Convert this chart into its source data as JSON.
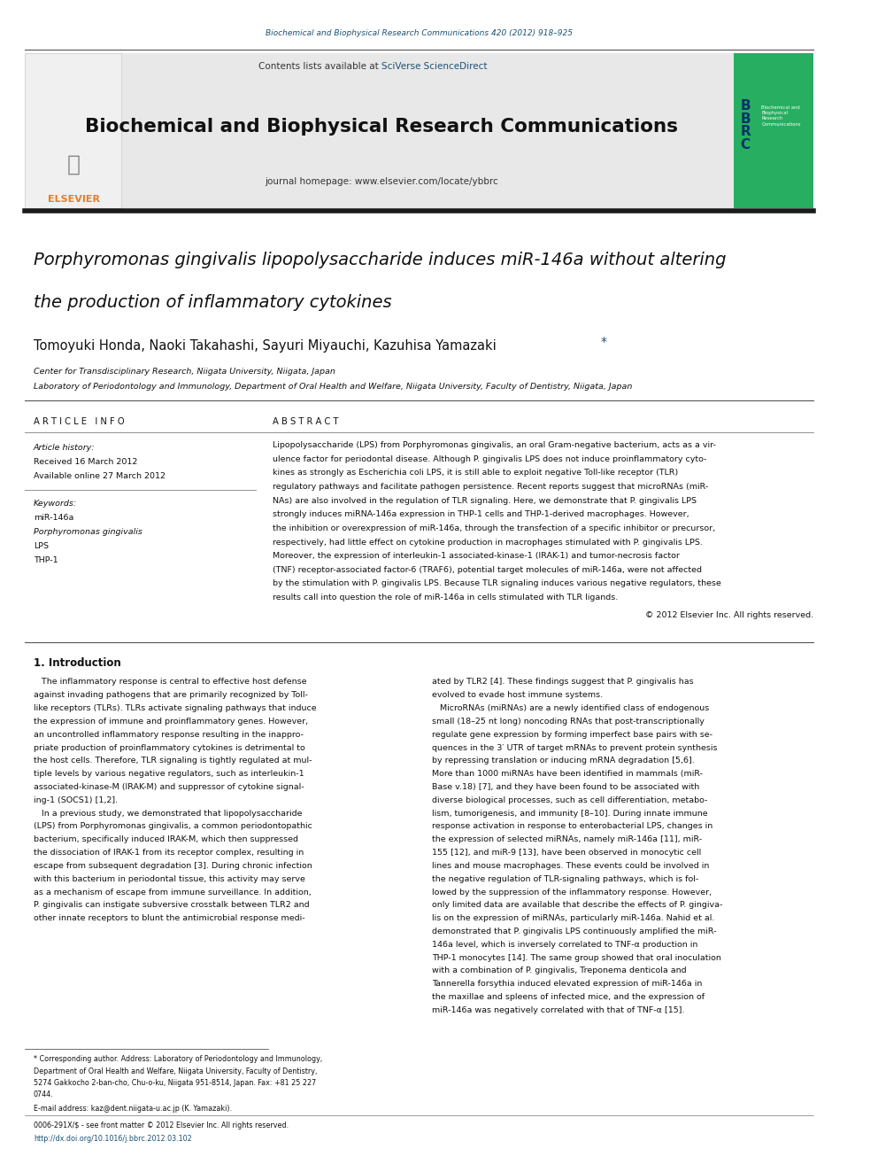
{
  "page_width": 9.92,
  "page_height": 13.23,
  "bg_color": "#ffffff",
  "top_journal_ref": "Biochemical and Biophysical Research Communications 420 (2012) 918–925",
  "top_ref_color": "#1a5276",
  "header_bg": "#e8e8e8",
  "header_text": "Contents lists available at ",
  "sciverse_text": "SciVerse ScienceDirect",
  "sciverse_color": "#1a5276",
  "journal_name": "Biochemical and Biophysical Research Communications",
  "journal_homepage": "journal homepage: www.elsevier.com/locate/ybbrc",
  "thick_line_color": "#1a1a1a",
  "article_title_line1": "Porphyromonas gingivalis lipopolysaccharide induces miR-146a without altering",
  "article_title_line2": "the production of inflammatory cytokines",
  "authors": "Tomoyuki Honda, Naoki Takahashi, Sayuri Miyauchi, Kazuhisa Yamazaki",
  "affil1": "Center for Transdisciplinary Research, Niigata University, Niigata, Japan",
  "affil2": "Laboratory of Periodontology and Immunology, Department of Oral Health and Welfare, Niigata University, Faculty of Dentistry, Niigata, Japan",
  "article_info_header": "A R T I C L E   I N F O",
  "abstract_header": "A B S T R A C T",
  "article_history_label": "Article history:",
  "received": "Received 16 March 2012",
  "available": "Available online 27 March 2012",
  "keywords_label": "Keywords:",
  "keywords": [
    "miR-146a",
    "Porphyromonas gingivalis",
    "LPS",
    "THP-1"
  ],
  "abstract_lines": [
    "Lipopolysaccharide (LPS) from Porphyromonas gingivalis, an oral Gram-negative bacterium, acts as a vir-",
    "ulence factor for periodontal disease. Although P. gingivalis LPS does not induce proinflammatory cyto-",
    "kines as strongly as Escherichia coli LPS, it is still able to exploit negative Toll-like receptor (TLR)",
    "regulatory pathways and facilitate pathogen persistence. Recent reports suggest that microRNAs (miR-",
    "NAs) are also involved in the regulation of TLR signaling. Here, we demonstrate that P. gingivalis LPS",
    "strongly induces miRNA-146a expression in THP-1 cells and THP-1-derived macrophages. However,",
    "the inhibition or overexpression of miR-146a, through the transfection of a specific inhibitor or precursor,",
    "respectively, had little effect on cytokine production in macrophages stimulated with P. gingivalis LPS.",
    "Moreover, the expression of interleukin-1 associated-kinase-1 (IRAK-1) and tumor-necrosis factor",
    "(TNF) receptor-associated factor-6 (TRAF6), potential target molecules of miR-146a, were not affected",
    "by the stimulation with P. gingivalis LPS. Because TLR signaling induces various negative regulators, these",
    "results call into question the role of miR-146a in cells stimulated with TLR ligands."
  ],
  "copyright": "© 2012 Elsevier Inc. All rights reserved.",
  "intro_header": "1. Introduction",
  "intro_left_lines": [
    "   The inflammatory response is central to effective host defense",
    "against invading pathogens that are primarily recognized by Toll-",
    "like receptors (TLRs). TLRs activate signaling pathways that induce",
    "the expression of immune and proinflammatory genes. However,",
    "an uncontrolled inflammatory response resulting in the inappro-",
    "priate production of proinflammatory cytokines is detrimental to",
    "the host cells. Therefore, TLR signaling is tightly regulated at mul-",
    "tiple levels by various negative regulators, such as interleukin-1",
    "associated-kinase-M (IRAK-M) and suppressor of cytokine signal-",
    "ing-1 (SOCS1) [1,2].",
    "   In a previous study, we demonstrated that lipopolysaccharide",
    "(LPS) from Porphyromonas gingivalis, a common periodontopathic",
    "bacterium, specifically induced IRAK-M, which then suppressed",
    "the dissociation of IRAK-1 from its receptor complex, resulting in",
    "escape from subsequent degradation [3]. During chronic infection",
    "with this bacterium in periodontal tissue, this activity may serve",
    "as a mechanism of escape from immune surveillance. In addition,",
    "P. gingivalis can instigate subversive crosstalk between TLR2 and",
    "other innate receptors to blunt the antimicrobial response medi-"
  ],
  "intro_right_lines": [
    "ated by TLR2 [4]. These findings suggest that P. gingivalis has",
    "evolved to evade host immune systems.",
    "   MicroRNAs (miRNAs) are a newly identified class of endogenous",
    "small (18–25 nt long) noncoding RNAs that post-transcriptionally",
    "regulate gene expression by forming imperfect base pairs with se-",
    "quences in the 3′ UTR of target mRNAs to prevent protein synthesis",
    "by repressing translation or inducing mRNA degradation [5,6].",
    "More than 1000 miRNAs have been identified in mammals (miR-",
    "Base v.18) [7], and they have been found to be associated with",
    "diverse biological processes, such as cell differentiation, metabo-",
    "lism, tumorigenesis, and immunity [8–10]. During innate immune",
    "response activation in response to enterobacterial LPS, changes in",
    "the expression of selected miRNAs, namely miR-146a [11], miR-",
    "155 [12], and miR-9 [13], have been observed in monocytic cell",
    "lines and mouse macrophages. These events could be involved in",
    "the negative regulation of TLR-signaling pathways, which is fol-",
    "lowed by the suppression of the inflammatory response. However,",
    "only limited data are available that describe the effects of P. gingiva-",
    "lis on the expression of miRNAs, particularly miR-146a. Nahid et al.",
    "demonstrated that P. gingivalis LPS continuously amplified the miR-",
    "146a level, which is inversely correlated to TNF-α production in",
    "THP-1 monocytes [14]. The same group showed that oral inoculation",
    "with a combination of P. gingivalis, Treponema denticola and",
    "Tannerella forsythia induced elevated expression of miR-146a in",
    "the maxillae and spleens of infected mice, and the expression of",
    "miR-146a was negatively correlated with that of TNF-α [15]."
  ],
  "footnote_lines": [
    "* Corresponding author. Address: Laboratory of Periodontology and Immunology,",
    "Department of Oral Health and Welfare, Niigata University, Faculty of Dentistry,",
    "5274 Gakkocho 2-ban-cho, Chu-o-ku, Niigata 951-8514, Japan. Fax: +81 25 227",
    "0744."
  ],
  "footnote_email": "E-mail address: kaz@dent.niigata-u.ac.jp (K. Yamazaki).",
  "footer_line1": "0006-291X/$ - see front matter © 2012 Elsevier Inc. All rights reserved.",
  "footer_line2": "http://dx.doi.org/10.1016/j.bbrc.2012.03.102",
  "footer_link_color": "#1a5276",
  "divider_color": "#808080",
  "thin_line_color": "#555555",
  "link_color": "#1a5276"
}
